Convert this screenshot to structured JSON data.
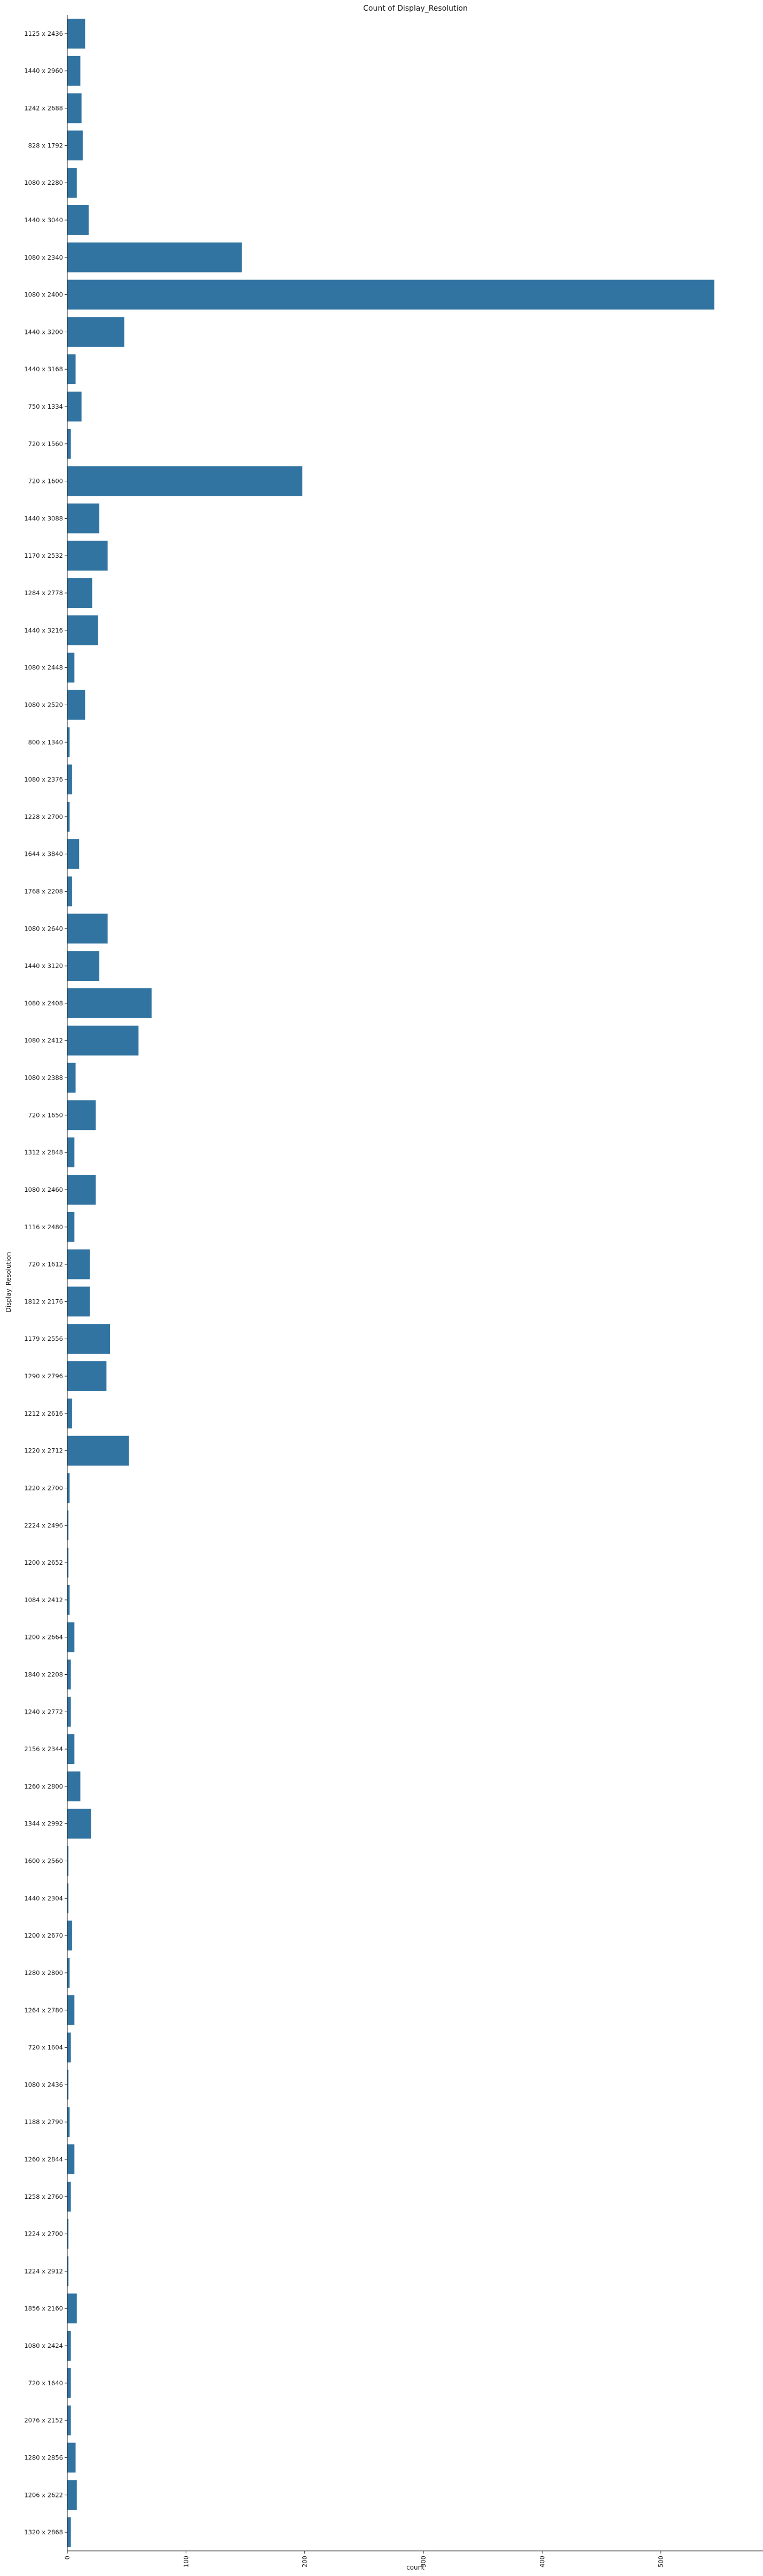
{
  "chart_data": {
    "type": "bar",
    "orientation": "horizontal",
    "title": "Count of Display_Resolution",
    "xlabel": "count",
    "ylabel": "Display_Resolution",
    "xlim": [
      0,
      555
    ],
    "xticks": [
      0,
      100,
      200,
      300,
      400,
      500
    ],
    "grid": false,
    "legend": "none",
    "bar_color": "#3274a1",
    "categories": [
      "1125 x 2436",
      "1440 x 2960",
      "1242 x 2688",
      "828 x 1792",
      "1080 x 2280",
      "1440 x 3040",
      "1080 x 2340",
      "1080 x 2400",
      "1440 x 3200",
      "1440 x 3168",
      "750 x 1334",
      "720 x 1560",
      "720 x 1600",
      "1440 x 3088",
      "1170 x 2532",
      "1284 x 2778",
      "1440 x 3216",
      "1080 x 2448",
      "1080 x 2520",
      "800 x 1340",
      "1080 x 2376",
      "1228 x 2700",
      "1644 x 3840",
      "1768 x 2208",
      "1080 x 2640",
      "1440 x 3120",
      "1080 x 2408",
      "1080 x 2412",
      "1080 x 2388",
      "720 x 1650",
      "1312 x 2848",
      "1080 x 2460",
      "1116 x 2480",
      "720 x 1612",
      "1812 x 2176",
      "1179 x 2556",
      "1290 x 2796",
      "1212 x 2616",
      "1220 x 2712",
      "1220 x 2700",
      "2224 x 2496",
      "1200 x 2652",
      "1084 x 2412",
      "1200 x 2664",
      "1840 x 2208",
      "1240 x 2772",
      "2156 x 2344",
      "1260 x 2800",
      "1344 x 2992",
      "1600 x 2560",
      "1440 x 2304",
      "1200 x 2670",
      "1280 x 2800",
      "1264 x 2780",
      "720 x 1604",
      "1080 x 2436",
      "1188 x 2790",
      "1260 x 2844",
      "1258 x 2760",
      "1224 x 2700",
      "1224 x 2912",
      "1856 x 2160",
      "1080 x 2424",
      "720 x 1640",
      "2076 x 2152",
      "1280 x 2856",
      "1206 x 2622",
      "1320 x 2868"
    ],
    "values": [
      15,
      11,
      12,
      13,
      8,
      18,
      147,
      545,
      48,
      7,
      12,
      3,
      198,
      27,
      34,
      21,
      26,
      6,
      15,
      2,
      4,
      2,
      10,
      4,
      34,
      27,
      71,
      60,
      7,
      24,
      6,
      24,
      6,
      19,
      19,
      36,
      33,
      4,
      52,
      2,
      1,
      1,
      2,
      6,
      3,
      3,
      6,
      11,
      20,
      1,
      1,
      4,
      2,
      6,
      3,
      1,
      2,
      6,
      3,
      1,
      1,
      8,
      3,
      3,
      3,
      7,
      8,
      3
    ]
  }
}
